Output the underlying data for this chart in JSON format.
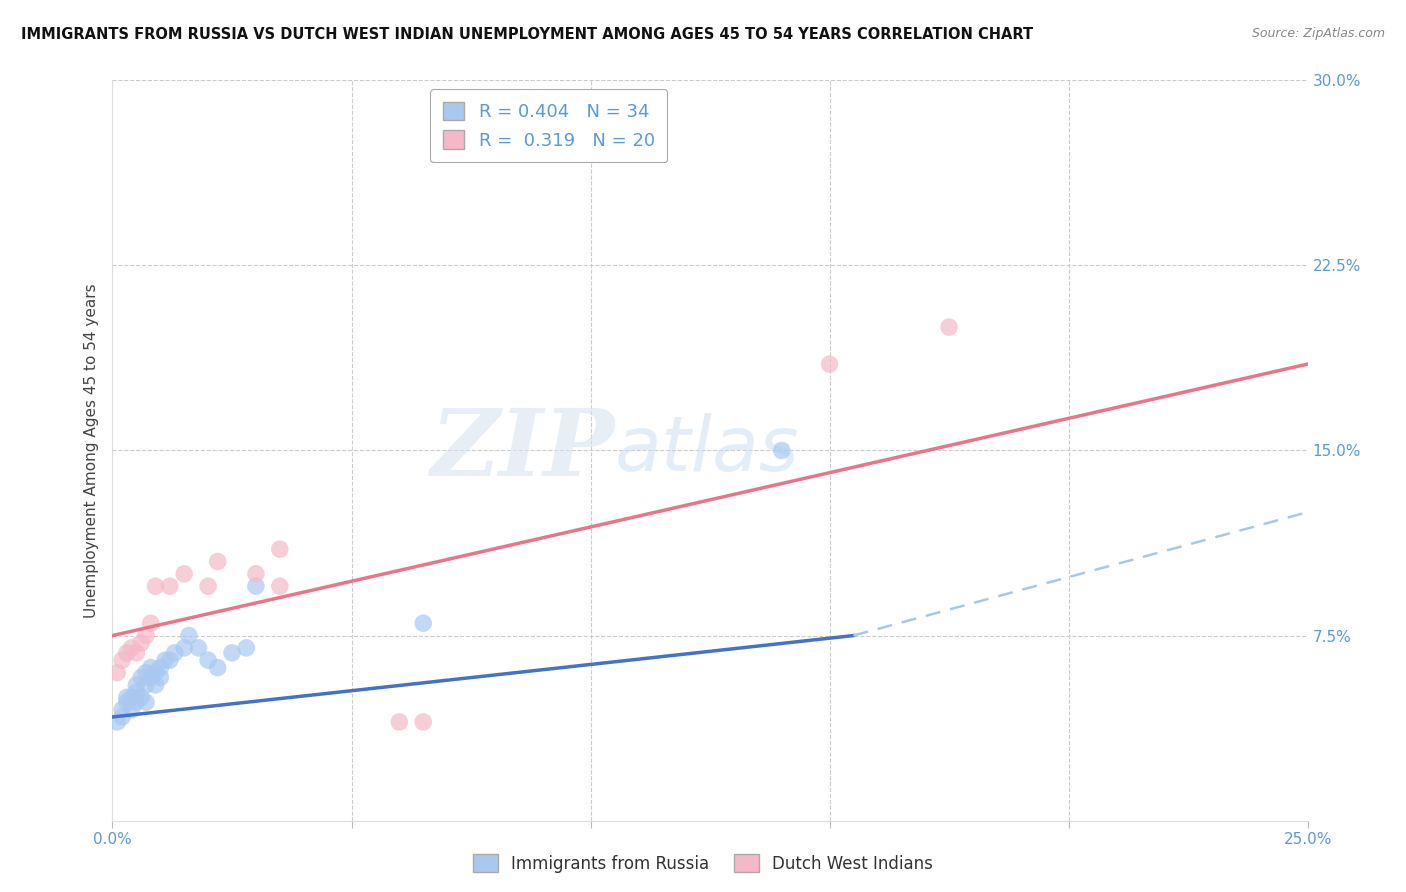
{
  "title": "IMMIGRANTS FROM RUSSIA VS DUTCH WEST INDIAN UNEMPLOYMENT AMONG AGES 45 TO 54 YEARS CORRELATION CHART",
  "source": "Source: ZipAtlas.com",
  "ylabel": "Unemployment Among Ages 45 to 54 years",
  "xlim": [
    0.0,
    0.25
  ],
  "ylim": [
    0.0,
    0.3
  ],
  "xticks": [
    0.0,
    0.05,
    0.1,
    0.15,
    0.2,
    0.25
  ],
  "yticks_right": [
    0.0,
    0.075,
    0.15,
    0.225,
    0.3
  ],
  "ytick_labels_right": [
    "",
    "7.5%",
    "15.0%",
    "22.5%",
    "30.0%"
  ],
  "blue_color": "#a8c8f0",
  "pink_color": "#f5b8c8",
  "blue_line_color": "#4472c4",
  "pink_line_color": "#e8758a",
  "dashed_line_color": "#a8c8e8",
  "legend_R_blue": "0.404",
  "legend_N_blue": "34",
  "legend_R_pink": "0.319",
  "legend_N_pink": "20",
  "watermark_zip": "ZIP",
  "watermark_atlas": "atlas",
  "blue_scatter_x": [
    0.001,
    0.002,
    0.002,
    0.003,
    0.003,
    0.004,
    0.004,
    0.005,
    0.005,
    0.005,
    0.006,
    0.006,
    0.007,
    0.007,
    0.007,
    0.008,
    0.008,
    0.009,
    0.009,
    0.01,
    0.01,
    0.011,
    0.012,
    0.013,
    0.015,
    0.016,
    0.018,
    0.02,
    0.022,
    0.025,
    0.028,
    0.03,
    0.065,
    0.14
  ],
  "blue_scatter_y": [
    0.04,
    0.045,
    0.042,
    0.05,
    0.048,
    0.05,
    0.045,
    0.052,
    0.048,
    0.055,
    0.05,
    0.058,
    0.06,
    0.055,
    0.048,
    0.058,
    0.062,
    0.06,
    0.055,
    0.062,
    0.058,
    0.065,
    0.065,
    0.068,
    0.07,
    0.075,
    0.07,
    0.065,
    0.062,
    0.068,
    0.07,
    0.095,
    0.08,
    0.15
  ],
  "pink_scatter_x": [
    0.001,
    0.002,
    0.003,
    0.004,
    0.005,
    0.006,
    0.007,
    0.008,
    0.009,
    0.012,
    0.015,
    0.02,
    0.022,
    0.03,
    0.035,
    0.035,
    0.06,
    0.065,
    0.15,
    0.175
  ],
  "pink_scatter_y": [
    0.06,
    0.065,
    0.068,
    0.07,
    0.068,
    0.072,
    0.075,
    0.08,
    0.095,
    0.095,
    0.1,
    0.095,
    0.105,
    0.1,
    0.095,
    0.11,
    0.04,
    0.04,
    0.185,
    0.2
  ],
  "blue_line_x0": 0.0,
  "blue_line_y0": 0.042,
  "blue_line_x1": 0.155,
  "blue_line_y1": 0.075,
  "pink_line_x0": 0.0,
  "pink_line_y0": 0.075,
  "pink_line_x1": 0.25,
  "pink_line_y1": 0.185,
  "dashed_line_x0": 0.155,
  "dashed_line_y0": 0.075,
  "dashed_line_x1": 0.25,
  "dashed_line_y1": 0.125
}
